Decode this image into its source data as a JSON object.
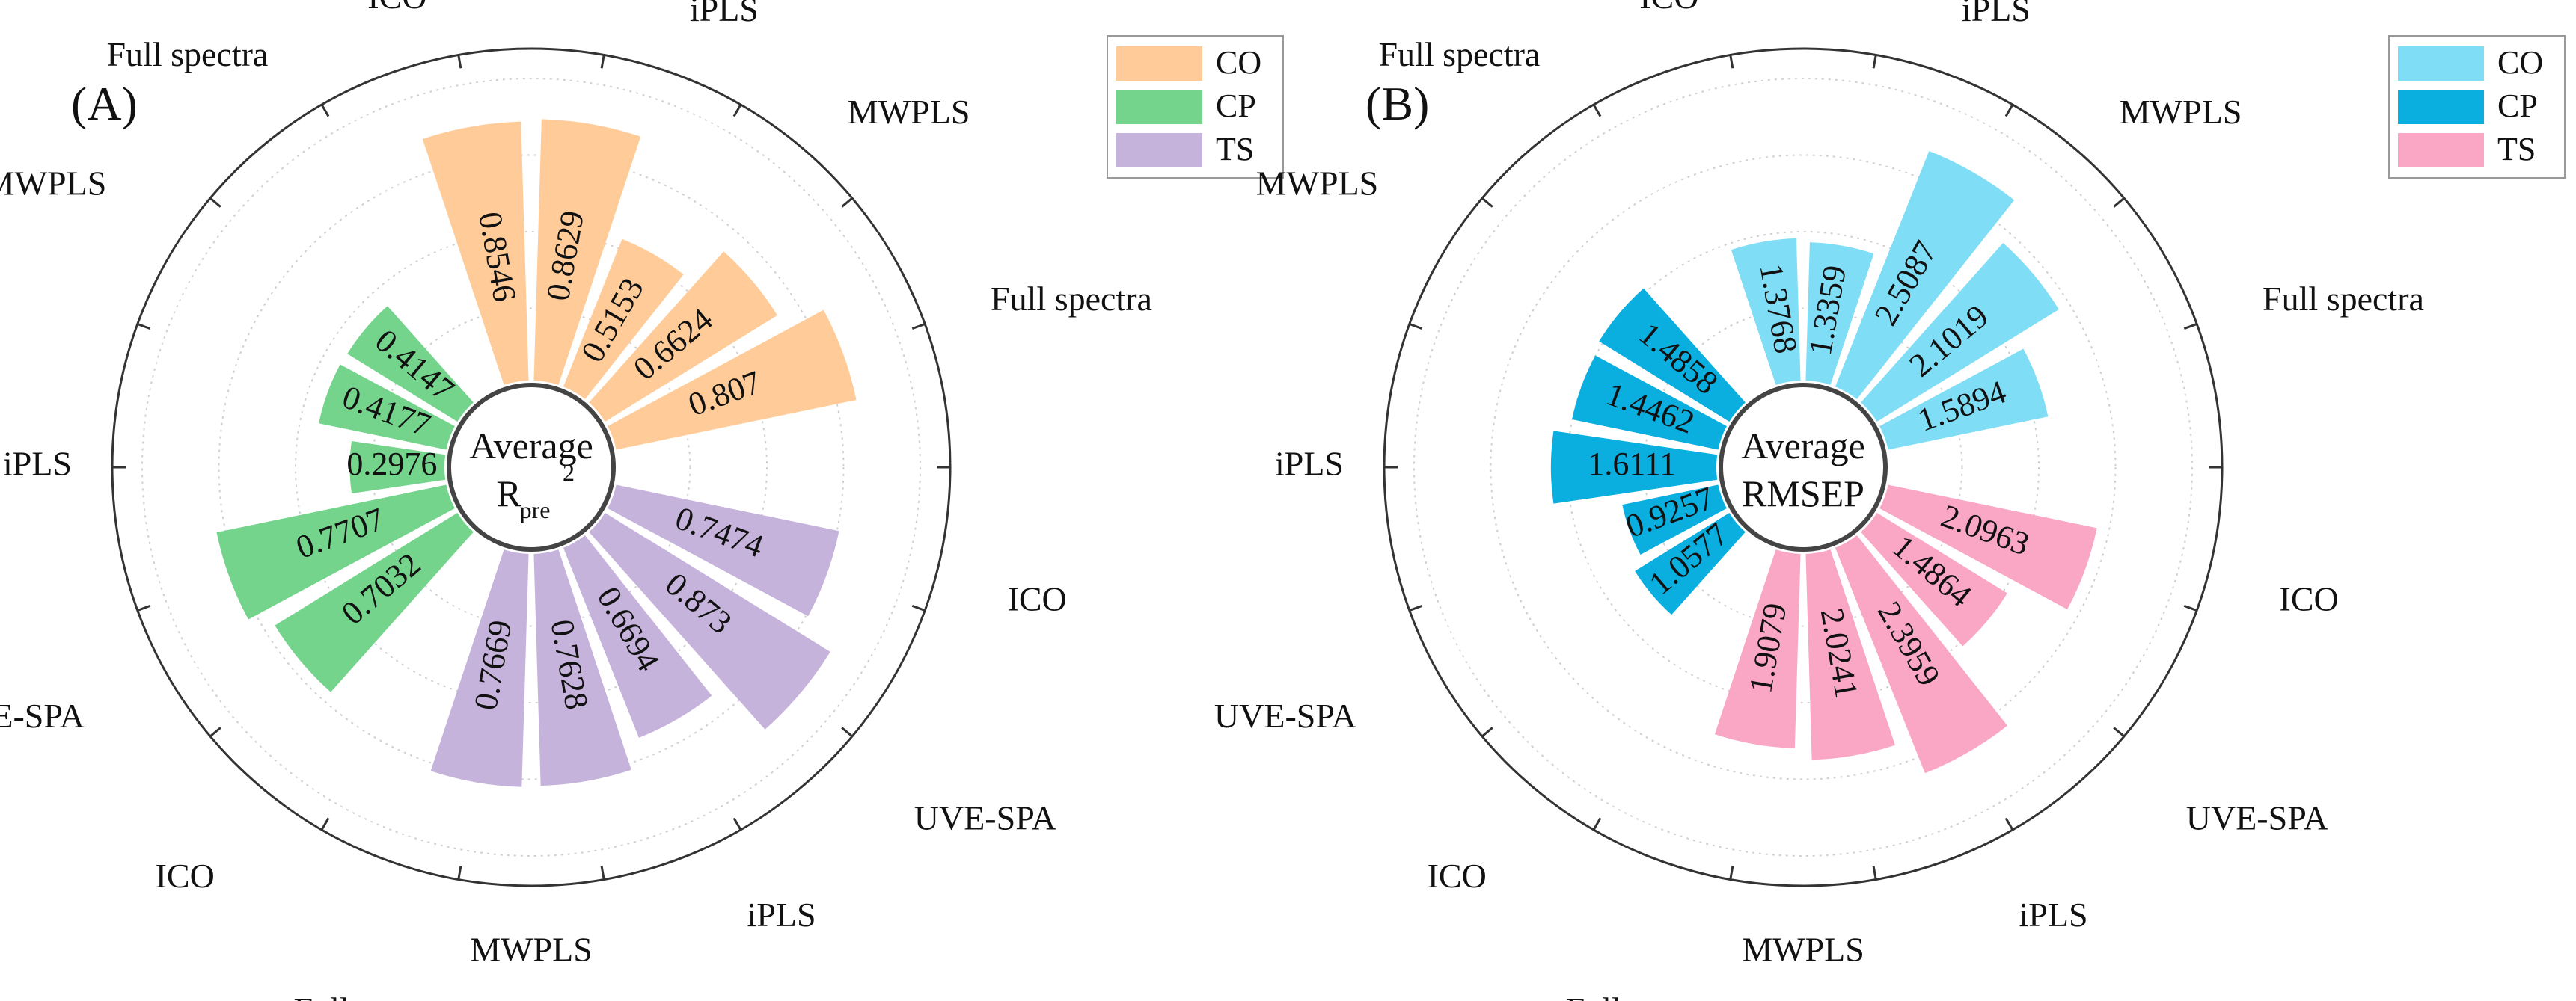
{
  "chart_data": [
    {
      "type": "bar",
      "subtype": "circular-radial-bar",
      "panel_label": "(A)",
      "center_title_line1": "Average",
      "center_title_base": "R",
      "center_title_sub": "pre",
      "center_title_sup": "2",
      "radius_scale": [
        0,
        1
      ],
      "series": [
        {
          "name": "CO",
          "color": "#FFCC99",
          "categories": [
            "ICO",
            "UVE-SPA",
            "iPLS",
            "MWPLS",
            "Full spectra"
          ],
          "values": [
            0.8546,
            0.8629,
            0.5153,
            0.6624,
            0.807
          ],
          "value_labels": [
            "0.8546",
            "0.8629",
            "0.5153",
            "0.6624",
            "0.807"
          ]
        },
        {
          "name": "TS",
          "color": "#C6B3DC",
          "categories": [
            "ICO",
            "UVE-SPA",
            "iPLS",
            "MWPLS",
            "Full spectra"
          ],
          "values": [
            0.7474,
            0.873,
            0.6694,
            0.7628,
            0.7669
          ],
          "value_labels": [
            "0.7474",
            "0.873",
            "0.6694",
            "0.7628",
            "0.7669"
          ]
        },
        {
          "name": "CP",
          "color": "#74D48C",
          "categories": [
            "ICO",
            "UVE-SPA",
            "iPLS",
            "MWPLS",
            "Full spectra"
          ],
          "values": [
            0.7032,
            0.7707,
            0.2976,
            0.4177,
            0.4147
          ],
          "value_labels": [
            "0.7032",
            "0.7707",
            "0.2976",
            "0.4177",
            "0.4147"
          ]
        }
      ],
      "legend": {
        "position": "top-right",
        "entries": [
          "CO",
          "CP",
          "TS"
        ]
      }
    },
    {
      "type": "bar",
      "subtype": "circular-radial-bar",
      "panel_label": "(B)",
      "center_title_line1": "Average",
      "center_title_line2": "RMSEP",
      "radius_scale": [
        0,
        3
      ],
      "series": [
        {
          "name": "CO",
          "color": "#7FDDF5",
          "categories": [
            "ICO",
            "UVE-SPA",
            "iPLS",
            "MWPLS",
            "Full spectra"
          ],
          "values": [
            1.3768,
            1.3359,
            2.5087,
            2.1019,
            1.5894
          ],
          "value_labels": [
            "1.3768",
            "1.3359",
            "2.5087",
            "2.1019",
            "1.5894"
          ]
        },
        {
          "name": "TS",
          "color": "#F9A7C4",
          "categories": [
            "ICO",
            "UVE-SPA",
            "iPLS",
            "MWPLS",
            "Full spectra"
          ],
          "values": [
            2.0963,
            1.4864,
            2.3959,
            2.0241,
            1.9079
          ],
          "value_labels": [
            "2.0963",
            "1.4864",
            "2.3959",
            "2.0241",
            "1.9079"
          ]
        },
        {
          "name": "CP",
          "color": "#0AAFE0",
          "categories": [
            "ICO",
            "UVE-SPA",
            "iPLS",
            "MWPLS",
            "Full spectra"
          ],
          "values": [
            1.0577,
            0.9257,
            1.6111,
            1.4462,
            1.4858
          ],
          "value_labels": [
            "1.0577",
            "0.9257",
            "1.6111",
            "1.4462",
            "1.4858"
          ]
        }
      ],
      "legend": {
        "position": "top-right",
        "entries": [
          "CO",
          "CP",
          "TS"
        ]
      }
    }
  ]
}
